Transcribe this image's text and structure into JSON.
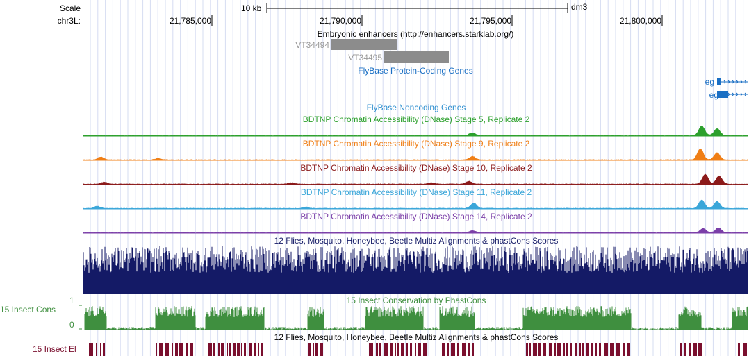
{
  "ruler": {
    "scale_label": "Scale",
    "chrom_label": "chr3L:",
    "scale_value": "10 kb",
    "assembly": "dm3",
    "positions": [
      "21,785,000",
      "21,790,000",
      "21,795,000",
      "21,800,000"
    ]
  },
  "tracks": {
    "enhancers": {
      "title": "Embryonic enhancers (http://enhancers.starklab.org/)",
      "items": [
        "VT34494",
        "VT34495"
      ]
    },
    "protein_coding": {
      "title": "FlyBase Protein-Coding Genes",
      "genes": [
        "eg",
        "eg"
      ]
    },
    "noncoding": {
      "title": "FlyBase Noncoding Genes"
    },
    "dnase": [
      {
        "title": "BDTNP Chromatin Accessibility (DNase) Stage 5, Replicate 2",
        "color": "#2ca02c"
      },
      {
        "title": "BDTNP Chromatin Accessibility (DNase) Stage 9, Replicate 2",
        "color": "#f07f16"
      },
      {
        "title": "BDTNP Chromatin Accessibility (DNase) Stage 10, Replicate 2",
        "color": "#8b1a1a"
      },
      {
        "title": "BDTNP Chromatin Accessibility (DNase) Stage 11, Replicate 2",
        "color": "#3aa6d9"
      },
      {
        "title": "BDTNP Chromatin Accessibility (DNase) Stage 14, Replicate 2",
        "color": "#7b3fa8"
      }
    ],
    "multiz": {
      "title": "12 Flies, Mosquito, Honeybee, Beetle Multiz Alignments & phastCons Scores",
      "color": "#141a66"
    },
    "cons": {
      "side_label": "15 Insect Cons",
      "title": "15 Insect Conservation by PhastCons",
      "y_max": "1",
      "y_min": "0",
      "color": "#3f8f3f"
    },
    "multiz2": {
      "title": "12 Flies, Mosquito, Honeybee, Beetle Multiz Alignments & phastCons Scores"
    },
    "elements": {
      "side_label": "15 Insect El",
      "color": "#7a0f2e"
    }
  }
}
